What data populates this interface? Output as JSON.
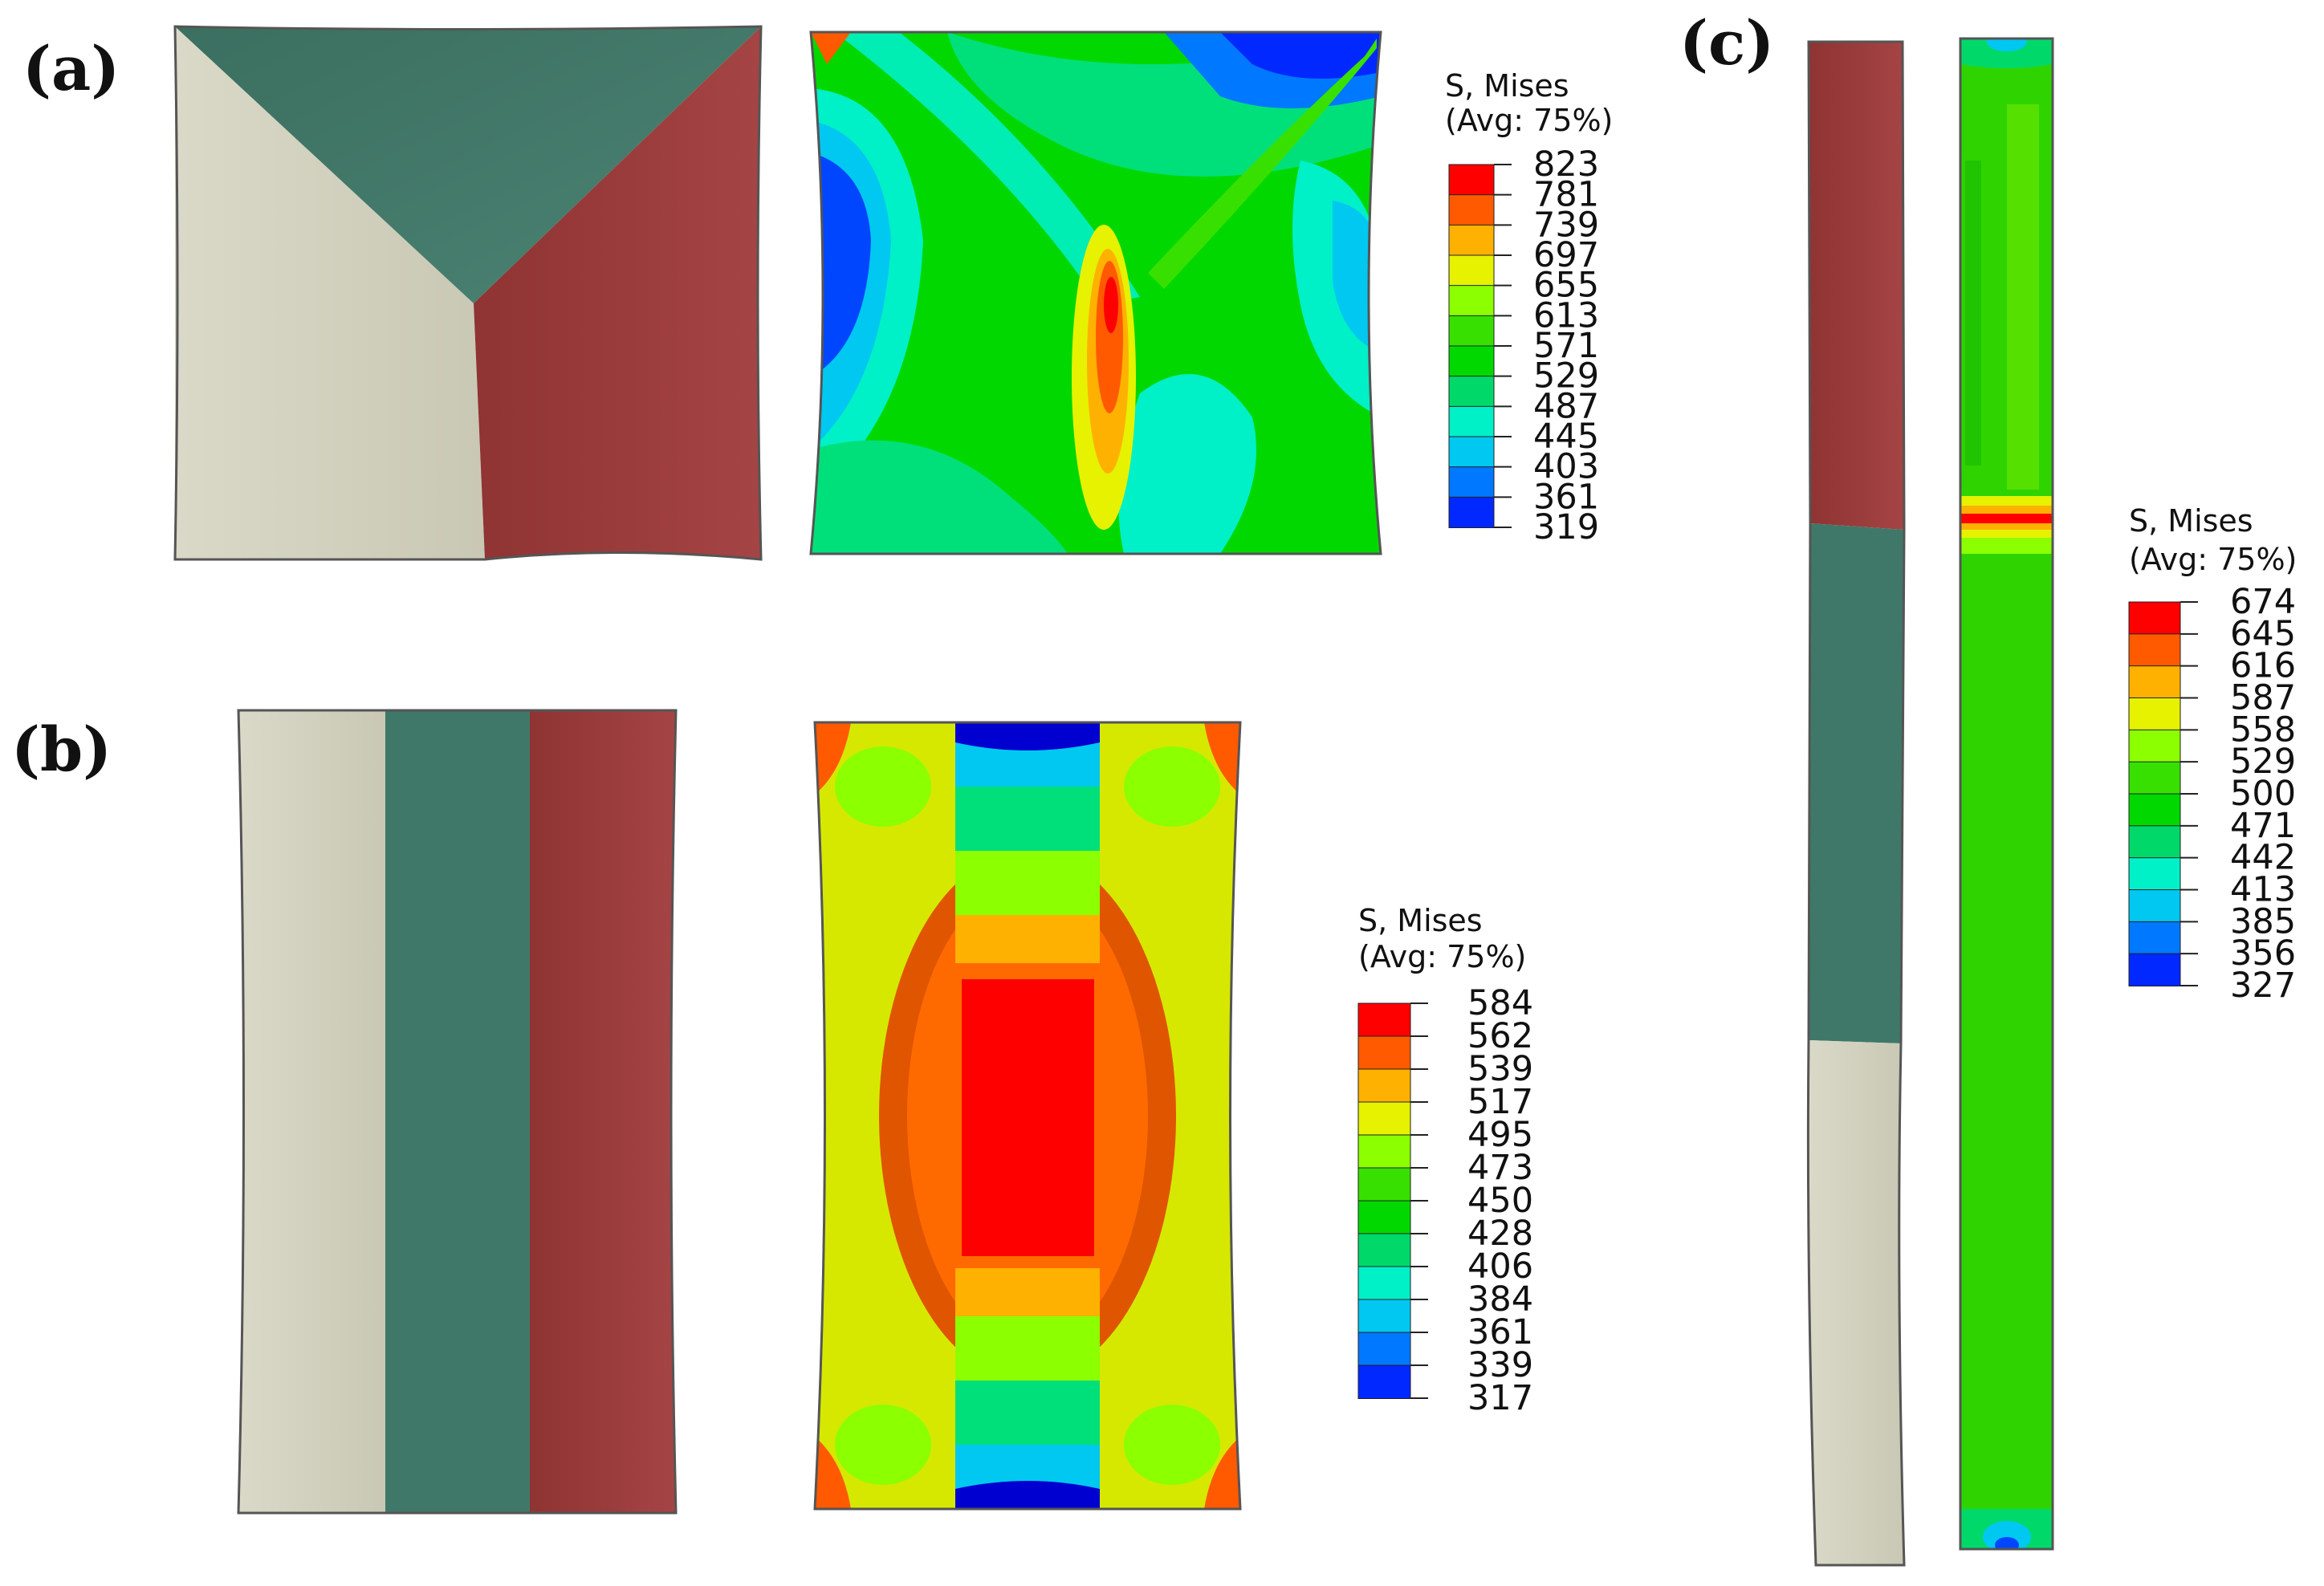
{
  "figure": {
    "panels": [
      {
        "id": "a",
        "label": "(a)",
        "legend": {
          "title_line1": "S, Mises",
          "title_line2": "(Avg: 75%)",
          "ticks": [
            "823",
            "781",
            "739",
            "697",
            "655",
            "613",
            "571",
            "529",
            "487",
            "445",
            "403",
            "361",
            "319"
          ]
        }
      },
      {
        "id": "b",
        "label": "(b)",
        "legend": {
          "title_line1": "S, Mises",
          "title_line2": "(Avg: 75%)",
          "ticks": [
            "584",
            "562",
            "539",
            "517",
            "495",
            "473",
            "450",
            "428",
            "406",
            "384",
            "361",
            "339",
            "317"
          ]
        }
      },
      {
        "id": "c",
        "label": "(c)",
        "legend": {
          "title_line1": "S, Mises",
          "title_line2": "(Avg: 75%)",
          "ticks": [
            "674",
            "645",
            "616",
            "587",
            "558",
            "529",
            "500",
            "471",
            "442",
            "413",
            "385",
            "356",
            "327"
          ]
        }
      }
    ],
    "colors": {
      "region_beige": "#cfcebb",
      "region_green": "#3f7868",
      "region_red": "#9c3b3b",
      "contour_scale": [
        "#ff0000",
        "#ff5a00",
        "#ffb100",
        "#e6f200",
        "#8cff00",
        "#38e000",
        "#00d800",
        "#00d96a",
        "#00f0c8",
        "#00c8f0",
        "#0078ff",
        "#0028ff",
        "#0000d0"
      ]
    }
  }
}
